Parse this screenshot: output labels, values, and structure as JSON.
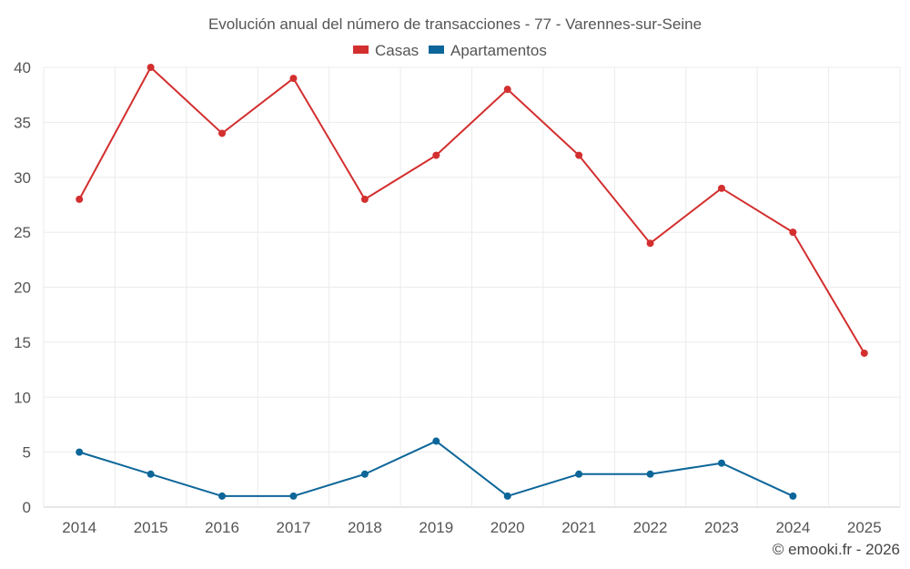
{
  "chart_data": {
    "type": "line",
    "title": "Evolución anual del número de transacciones - 77 - Varennes-sur-Seine",
    "categories": [
      "2014",
      "2015",
      "2016",
      "2017",
      "2018",
      "2019",
      "2020",
      "2021",
      "2022",
      "2023",
      "2024",
      "2025"
    ],
    "series": [
      {
        "name": "Casas",
        "color": "#d32f2f",
        "values": [
          28,
          40,
          34,
          39,
          28,
          32,
          38,
          32,
          24,
          29,
          25,
          14
        ]
      },
      {
        "name": "Apartamentos",
        "color": "#0d6699",
        "values": [
          5,
          3,
          1,
          1,
          3,
          6,
          1,
          3,
          3,
          4,
          1,
          null
        ]
      }
    ],
    "ylim": [
      0,
      40
    ],
    "yticks": [
      0,
      5,
      10,
      15,
      20,
      25,
      30,
      35,
      40
    ],
    "xlabel": "",
    "ylabel": "",
    "grid": true,
    "legend_position": "top-center"
  },
  "credit": "© emooki.fr - 2026"
}
